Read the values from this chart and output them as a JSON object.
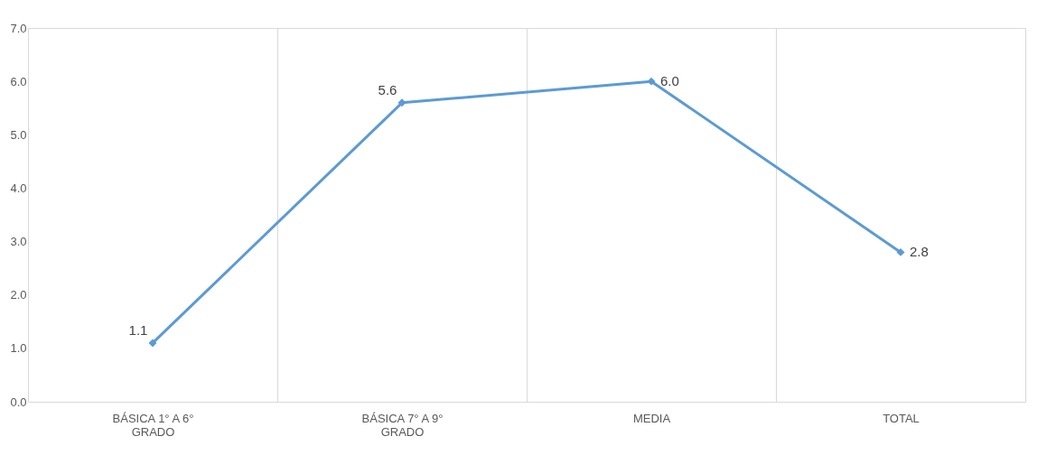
{
  "chart_data": {
    "type": "line",
    "categories": [
      "BÁSICA 1° A 6° GRADO",
      "BÁSICA 7° A 9° GRADO",
      "MEDIA",
      "TOTAL"
    ],
    "series": [
      {
        "color": "#5b9bd5",
        "values": [
          1.1,
          5.6,
          6.0,
          2.8
        ],
        "value_labels": [
          "1.1",
          "5.6",
          "6.0",
          "2.8"
        ]
      }
    ],
    "ylim": [
      0,
      7
    ],
    "yticks": [
      {
        "value": 0,
        "label": "0.0"
      },
      {
        "value": 1,
        "label": "1.0"
      },
      {
        "value": 2,
        "label": "2.0"
      },
      {
        "value": 3,
        "label": "3.0"
      },
      {
        "value": 4,
        "label": "4.0"
      },
      {
        "value": 5,
        "label": "5.0"
      },
      {
        "value": 6,
        "label": "6.0"
      },
      {
        "value": 7,
        "label": "7.0"
      }
    ],
    "grid": "x",
    "marker": "diamond",
    "line_style": "solid"
  }
}
